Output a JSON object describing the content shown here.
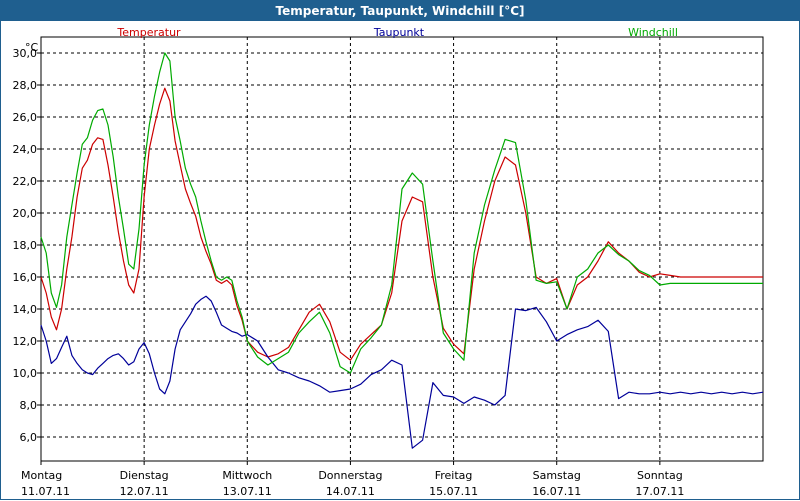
{
  "window_title": "Temperatur, Taupunkt, Windchill [°C]",
  "colors": {
    "title_bar": "#1f5f8f",
    "temperatur": "#cc0000",
    "taupunkt": "#000099",
    "windchill": "#00aa00"
  },
  "chart_data": {
    "type": "line",
    "title": "Temperatur, Taupunkt, Windchill [°C]",
    "ylabel": "°C",
    "xlabel": "",
    "ylim": [
      4.5,
      31.0
    ],
    "y_ticks": [
      "6,0",
      "8,0",
      "10,0",
      "12,0",
      "14,0",
      "16,0",
      "18,0",
      "20,0",
      "22,0",
      "24,0",
      "26,0",
      "28,0",
      "30,0"
    ],
    "y_tick_values": [
      6,
      8,
      10,
      12,
      14,
      16,
      18,
      20,
      22,
      24,
      26,
      28,
      30
    ],
    "xlim": [
      0,
      7
    ],
    "x_ticks": [
      {
        "day": "Montag",
        "date": "11.07.11"
      },
      {
        "day": "Dienstag",
        "date": "12.07.11"
      },
      {
        "day": "Mittwoch",
        "date": "13.07.11"
      },
      {
        "day": "Donnerstag",
        "date": "14.07.11"
      },
      {
        "day": "Freitag",
        "date": "15.07.11"
      },
      {
        "day": "Samstag",
        "date": "16.07.11"
      },
      {
        "day": "Sonntag",
        "date": "17.07.11"
      }
    ],
    "grid": true,
    "legend_position": "top",
    "series": [
      {
        "name": "Temperatur",
        "color": "#cc0000",
        "x": [
          0,
          0.05,
          0.1,
          0.15,
          0.2,
          0.25,
          0.3,
          0.35,
          0.4,
          0.45,
          0.5,
          0.55,
          0.6,
          0.65,
          0.7,
          0.75,
          0.8,
          0.85,
          0.9,
          0.95,
          1,
          1.05,
          1.1,
          1.15,
          1.2,
          1.25,
          1.3,
          1.35,
          1.4,
          1.45,
          1.5,
          1.55,
          1.6,
          1.65,
          1.7,
          1.75,
          1.8,
          1.85,
          1.9,
          1.95,
          2,
          2.1,
          2.2,
          2.3,
          2.4,
          2.5,
          2.6,
          2.7,
          2.8,
          2.9,
          3,
          3.1,
          3.2,
          3.3,
          3.4,
          3.5,
          3.6,
          3.7,
          3.8,
          3.9,
          4,
          4.1,
          4.2,
          4.3,
          4.4,
          4.5,
          4.6,
          4.7,
          4.8,
          4.9,
          5,
          5.1,
          5.2,
          5.3,
          5.4,
          5.5,
          5.6,
          5.7,
          5.8,
          5.9,
          6,
          6.1,
          6.2,
          6.3,
          6.4,
          6.5,
          6.6,
          6.7,
          6.8,
          6.9,
          7
        ],
        "values": [
          16.0,
          15.0,
          13.5,
          12.7,
          14.0,
          16.5,
          18.5,
          21.0,
          22.8,
          23.3,
          24.3,
          24.7,
          24.6,
          23.0,
          21.0,
          18.8,
          17.0,
          15.5,
          15.0,
          16.5,
          21.0,
          24.0,
          25.5,
          26.8,
          27.8,
          27.0,
          24.5,
          23.0,
          21.5,
          20.6,
          19.8,
          18.5,
          17.6,
          16.8,
          15.8,
          15.6,
          15.8,
          15.5,
          14.2,
          13.3,
          12.0,
          11.3,
          11.0,
          11.2,
          11.6,
          12.7,
          13.8,
          14.3,
          13.2,
          11.3,
          10.8,
          11.8,
          12.4,
          13.0,
          15.0,
          19.5,
          21.0,
          20.7,
          16.0,
          12.8,
          11.8,
          11.2,
          16.5,
          19.5,
          22.0,
          23.5,
          23.0,
          20.0,
          16.0,
          15.6,
          15.9,
          14.0,
          15.5,
          16.0,
          17.0,
          18.2,
          17.5,
          17.0,
          16.3,
          16.0,
          16.2,
          16.1,
          16.0,
          16.0,
          16.0,
          16.0,
          16.0,
          16.0,
          16.0,
          16.0,
          16.0
        ]
      },
      {
        "name": "Taupunkt",
        "color": "#000099",
        "x": [
          0,
          0.05,
          0.1,
          0.15,
          0.2,
          0.25,
          0.3,
          0.35,
          0.4,
          0.45,
          0.5,
          0.55,
          0.6,
          0.65,
          0.7,
          0.75,
          0.8,
          0.85,
          0.9,
          0.95,
          1,
          1.05,
          1.1,
          1.15,
          1.2,
          1.25,
          1.3,
          1.35,
          1.4,
          1.45,
          1.5,
          1.55,
          1.6,
          1.65,
          1.7,
          1.75,
          1.8,
          1.85,
          1.9,
          1.95,
          2,
          2.1,
          2.2,
          2.3,
          2.4,
          2.5,
          2.6,
          2.7,
          2.8,
          2.9,
          3,
          3.1,
          3.2,
          3.3,
          3.4,
          3.5,
          3.6,
          3.7,
          3.8,
          3.9,
          4,
          4.1,
          4.2,
          4.3,
          4.4,
          4.5,
          4.6,
          4.7,
          4.8,
          4.9,
          5,
          5.1,
          5.2,
          5.3,
          5.4,
          5.5,
          5.6,
          5.7,
          5.8,
          5.9,
          6,
          6.1,
          6.2,
          6.3,
          6.4,
          6.5,
          6.6,
          6.7,
          6.8,
          6.9,
          7
        ],
        "values": [
          13.0,
          12.0,
          10.6,
          10.9,
          11.6,
          12.3,
          11.1,
          10.6,
          10.2,
          10.0,
          9.9,
          10.3,
          10.6,
          10.9,
          11.1,
          11.2,
          10.9,
          10.5,
          10.7,
          11.5,
          11.9,
          11.2,
          10.0,
          9.0,
          8.7,
          9.5,
          11.5,
          12.7,
          13.2,
          13.7,
          14.3,
          14.6,
          14.8,
          14.5,
          13.8,
          13.0,
          12.8,
          12.6,
          12.5,
          12.3,
          12.4,
          12.0,
          11.0,
          10.2,
          10.0,
          9.7,
          9.5,
          9.2,
          8.8,
          8.9,
          9.0,
          9.3,
          9.9,
          10.2,
          10.8,
          10.5,
          5.3,
          5.8,
          9.4,
          8.6,
          8.5,
          8.1,
          8.5,
          8.3,
          8.0,
          8.6,
          14.0,
          13.9,
          14.1,
          13.2,
          12.0,
          12.4,
          12.7,
          12.9,
          13.3,
          12.6,
          8.4,
          8.8,
          8.7,
          8.7,
          8.8,
          8.7,
          8.8,
          8.7,
          8.8,
          8.7,
          8.8,
          8.7,
          8.8,
          8.7,
          8.8
        ]
      },
      {
        "name": "Windchill",
        "color": "#00aa00",
        "x": [
          0,
          0.05,
          0.1,
          0.15,
          0.2,
          0.25,
          0.3,
          0.35,
          0.4,
          0.45,
          0.5,
          0.55,
          0.6,
          0.65,
          0.7,
          0.75,
          0.8,
          0.85,
          0.9,
          0.95,
          1,
          1.05,
          1.1,
          1.15,
          1.2,
          1.25,
          1.3,
          1.35,
          1.4,
          1.45,
          1.5,
          1.55,
          1.6,
          1.65,
          1.7,
          1.75,
          1.8,
          1.85,
          1.9,
          1.95,
          2,
          2.1,
          2.2,
          2.3,
          2.4,
          2.5,
          2.6,
          2.7,
          2.8,
          2.9,
          3,
          3.1,
          3.2,
          3.3,
          3.4,
          3.5,
          3.6,
          3.7,
          3.8,
          3.9,
          4,
          4.1,
          4.2,
          4.3,
          4.4,
          4.5,
          4.6,
          4.7,
          4.8,
          4.9,
          5,
          5.1,
          5.2,
          5.3,
          5.4,
          5.5,
          5.6,
          5.7,
          5.8,
          5.9,
          6,
          6.1,
          6.2,
          6.3,
          6.4,
          6.5,
          6.6,
          6.7,
          6.8,
          6.9,
          7
        ],
        "values": [
          18.5,
          17.5,
          15.0,
          14.1,
          15.5,
          18.5,
          20.5,
          22.5,
          24.3,
          24.7,
          25.8,
          26.4,
          26.5,
          25.5,
          23.5,
          21.0,
          19.0,
          16.8,
          16.5,
          19.0,
          23.0,
          25.5,
          27.3,
          28.8,
          30.0,
          29.5,
          26.0,
          24.5,
          22.8,
          21.8,
          21.0,
          19.5,
          18.2,
          17.0,
          16.0,
          15.8,
          16.0,
          15.8,
          14.5,
          13.5,
          12.0,
          11.0,
          10.5,
          10.9,
          11.3,
          12.5,
          13.2,
          13.8,
          12.5,
          10.4,
          10.0,
          11.5,
          12.2,
          13.0,
          15.5,
          21.5,
          22.5,
          21.8,
          17.0,
          12.5,
          11.5,
          10.8,
          17.5,
          20.5,
          22.7,
          24.6,
          24.4,
          20.8,
          15.8,
          15.6,
          15.7,
          14.0,
          16.0,
          16.5,
          17.5,
          18.0,
          17.4,
          17.0,
          16.4,
          16.1,
          15.5,
          15.6,
          15.6,
          15.6,
          15.6,
          15.6,
          15.6,
          15.6,
          15.6,
          15.6,
          15.6
        ]
      }
    ]
  }
}
